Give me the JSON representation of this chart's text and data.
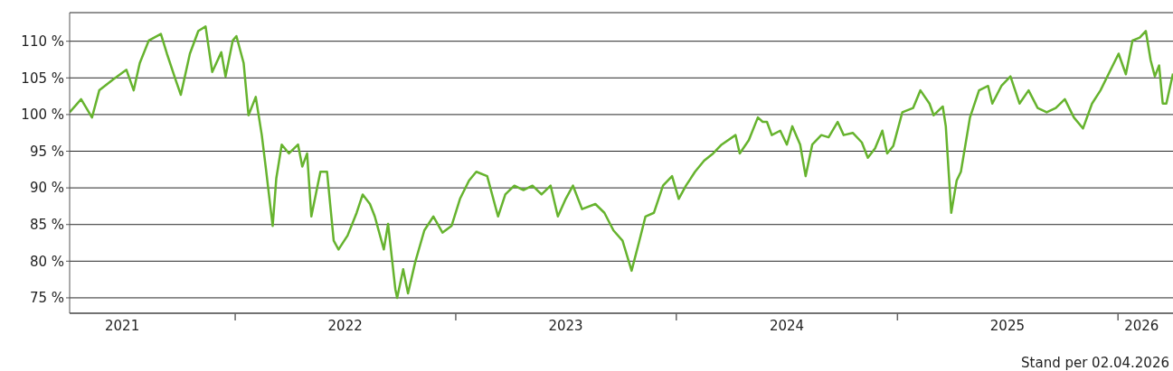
{
  "chart_data": {
    "type": "line",
    "x": [
      "2021-04-02",
      "2021-04-21",
      "2021-05-09",
      "2021-05-21",
      "2021-06-13",
      "2021-07-05",
      "2021-07-17",
      "2021-07-27",
      "2021-08-11",
      "2021-08-31",
      "2021-09-10",
      "2021-09-25",
      "2021-10-03",
      "2021-10-18",
      "2021-11-01",
      "2021-11-13",
      "2021-11-24",
      "2021-12-09",
      "2021-12-16",
      "2021-12-28",
      "2022-01-03",
      "2022-01-15",
      "2022-01-23",
      "2022-02-04",
      "2022-02-14",
      "2022-02-21",
      "2022-03-04",
      "2022-03-10",
      "2022-03-19",
      "2022-03-31",
      "2022-04-15",
      "2022-04-22",
      "2022-04-30",
      "2022-05-07",
      "2022-05-22",
      "2022-06-02",
      "2022-06-13",
      "2022-06-21",
      "2022-07-06",
      "2022-07-21",
      "2022-07-31",
      "2022-08-12",
      "2022-08-20",
      "2022-09-04",
      "2022-09-11",
      "2022-09-23",
      "2022-09-26",
      "2022-10-06",
      "2022-10-14",
      "2022-10-26",
      "2022-11-10",
      "2022-11-25",
      "2022-12-10",
      "2022-12-25",
      "2023-01-08",
      "2023-01-23",
      "2023-02-04",
      "2023-02-22",
      "2023-03-12",
      "2023-03-24",
      "2023-04-08",
      "2023-04-23",
      "2023-05-08",
      "2023-05-23",
      "2023-06-07",
      "2023-06-19",
      "2023-07-02",
      "2023-07-14",
      "2023-07-29",
      "2023-08-20",
      "2023-09-04",
      "2023-09-19",
      "2023-10-04",
      "2023-10-19",
      "2023-10-31",
      "2023-11-11",
      "2023-11-25",
      "2023-12-10",
      "2023-12-25",
      "2024-01-05",
      "2024-01-17",
      "2024-02-01",
      "2024-02-16",
      "2024-03-02",
      "2024-03-16",
      "2024-04-08",
      "2024-04-15",
      "2024-04-30",
      "2024-05-15",
      "2024-05-23",
      "2024-05-30",
      "2024-06-07",
      "2024-06-21",
      "2024-07-02",
      "2024-07-11",
      "2024-07-24",
      "2024-08-02",
      "2024-08-13",
      "2024-08-28",
      "2024-09-09",
      "2024-09-24",
      "2024-10-04",
      "2024-10-19",
      "2024-11-03",
      "2024-11-13",
      "2024-11-25",
      "2024-12-07",
      "2024-12-15",
      "2024-12-25",
      "2025-01-09",
      "2025-01-27",
      "2025-02-08",
      "2025-02-23",
      "2025-03-02",
      "2025-03-17",
      "2025-03-22",
      "2025-03-31",
      "2025-04-09",
      "2025-04-16",
      "2025-05-01",
      "2025-05-16",
      "2025-05-31",
      "2025-06-07",
      "2025-06-22",
      "2025-07-07",
      "2025-07-22",
      "2025-08-06",
      "2025-08-21",
      "2025-09-05",
      "2025-09-20",
      "2025-10-05",
      "2025-10-20",
      "2025-11-04",
      "2025-11-19",
      "2025-12-03",
      "2025-12-18",
      "2026-01-02",
      "2026-01-14",
      "2026-01-25",
      "2026-02-06",
      "2026-02-16",
      "2026-02-24",
      "2026-03-03",
      "2026-03-10",
      "2026-03-16",
      "2026-03-22",
      "2026-04-02"
    ],
    "series": [
      {
        "color": "#66b32e",
        "values": [
          100.3,
          102.1,
          99.6,
          103.3,
          104.8,
          106.1,
          103.3,
          107.0,
          110.1,
          111.0,
          108.3,
          104.6,
          102.7,
          108.3,
          111.4,
          112.0,
          105.8,
          108.5,
          105.2,
          110.1,
          110.7,
          107.0,
          99.9,
          102.4,
          97.2,
          92.5,
          84.8,
          91.3,
          95.9,
          94.7,
          95.9,
          92.9,
          94.7,
          86.1,
          92.2,
          92.2,
          82.8,
          81.6,
          83.5,
          86.6,
          89.1,
          87.8,
          86.1,
          81.6,
          85.1,
          76.2,
          75.0,
          78.9,
          75.6,
          79.9,
          84.2,
          86.1,
          83.9,
          84.8,
          88.5,
          91.0,
          92.2,
          91.6,
          86.1,
          89.1,
          90.3,
          89.7,
          90.3,
          89.1,
          90.3,
          86.1,
          88.5,
          90.3,
          87.1,
          87.8,
          86.6,
          84.2,
          82.8,
          78.7,
          82.5,
          86.1,
          86.6,
          90.3,
          91.6,
          88.5,
          90.3,
          92.2,
          93.7,
          94.7,
          95.9,
          97.2,
          94.7,
          96.5,
          99.6,
          99.0,
          99.0,
          97.2,
          97.8,
          95.9,
          98.4,
          95.9,
          91.6,
          95.9,
          97.2,
          96.9,
          99.0,
          97.2,
          97.5,
          96.2,
          94.1,
          95.4,
          97.8,
          94.7,
          95.7,
          100.3,
          100.9,
          103.3,
          101.5,
          99.9,
          101.1,
          98.4,
          86.6,
          91.0,
          92.2,
          99.6,
          103.3,
          103.9,
          101.5,
          103.9,
          105.2,
          101.5,
          103.3,
          100.9,
          100.3,
          100.9,
          102.1,
          99.6,
          98.1,
          101.5,
          103.3,
          105.8,
          108.3,
          105.5,
          110.1,
          110.5,
          111.4,
          107.4,
          105.2,
          106.7,
          101.5,
          101.5,
          105.6
        ]
      }
    ],
    "xlim": [
      "2021-04-02",
      "2026-04-02"
    ],
    "xticks": [
      {
        "value": "2021-06-28",
        "label": "2021"
      },
      {
        "value": "2022-01-01",
        "label": null
      },
      {
        "value": "2022-07-02",
        "label": "2022"
      },
      {
        "value": "2023-01-01",
        "label": null
      },
      {
        "value": "2023-07-02",
        "label": "2023"
      },
      {
        "value": "2024-01-01",
        "label": null
      },
      {
        "value": "2024-07-02",
        "label": "2024"
      },
      {
        "value": "2025-01-01",
        "label": null
      },
      {
        "value": "2025-07-02",
        "label": "2025"
      },
      {
        "value": "2026-01-01",
        "label": null
      },
      {
        "value": "2026-02-09",
        "label": "2026"
      }
    ],
    "ylim": [
      72.9,
      113.9
    ],
    "yticks": [
      {
        "value": 75,
        "label": "75 %"
      },
      {
        "value": 80,
        "label": "80 %"
      },
      {
        "value": 85,
        "label": "85 %"
      },
      {
        "value": 90,
        "label": "90 %"
      },
      {
        "value": 95,
        "label": "95 %"
      },
      {
        "value": 100,
        "label": "100 %"
      },
      {
        "value": 105,
        "label": "105 %"
      },
      {
        "value": 110,
        "label": "110 %"
      }
    ],
    "grid": "y",
    "annotations": [
      "Stand per 02.04.2026"
    ]
  }
}
